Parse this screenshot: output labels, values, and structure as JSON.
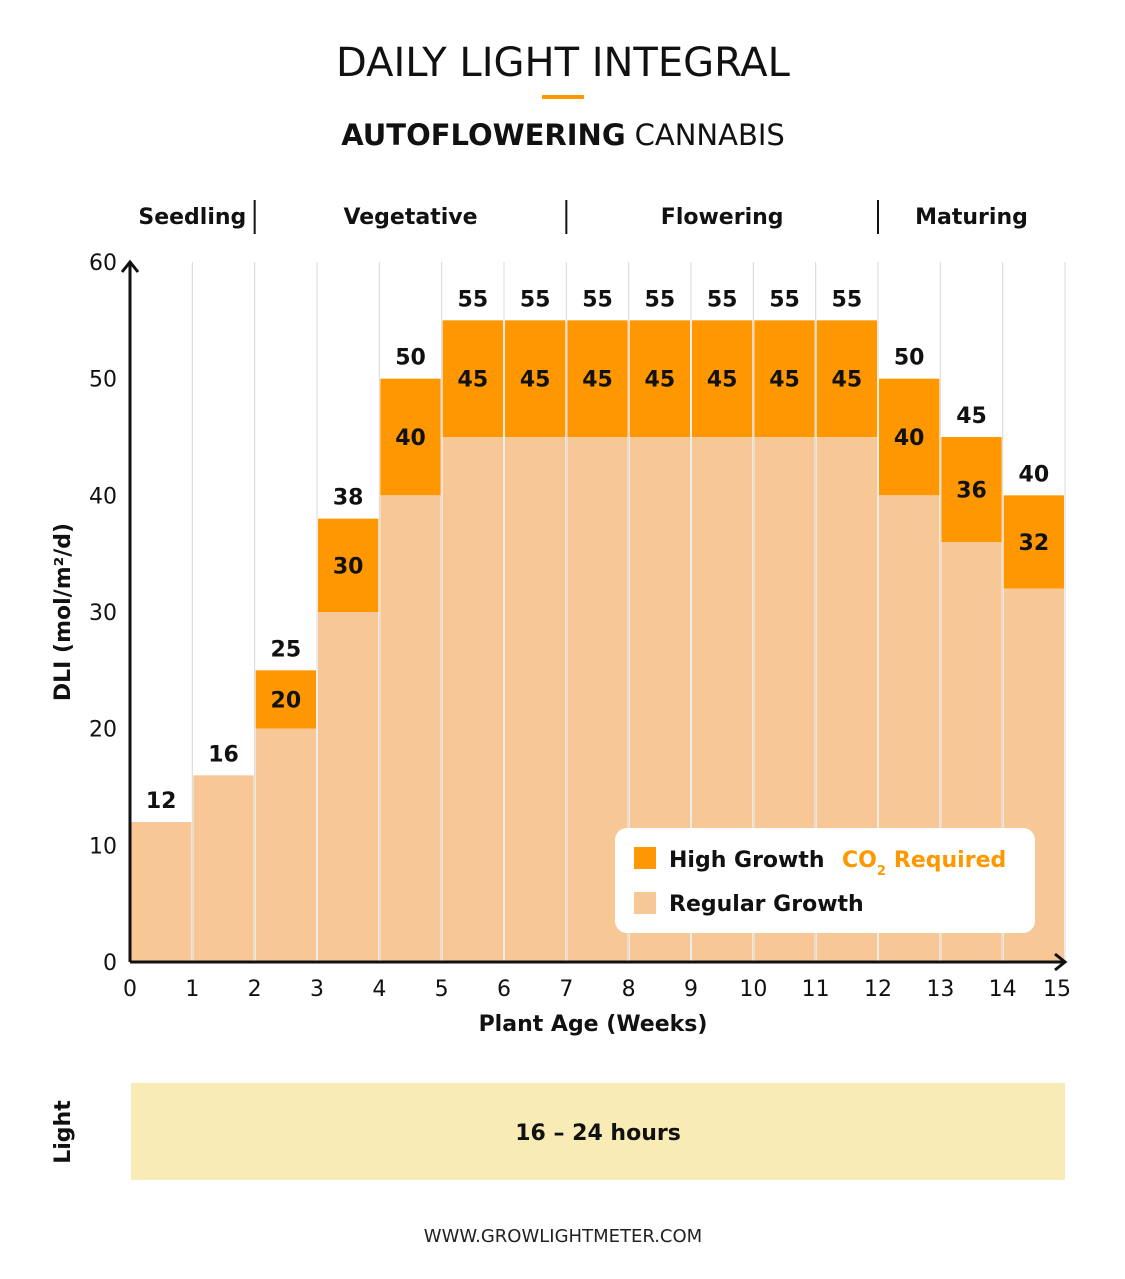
{
  "title": "DAILY LIGHT INTEGRAL",
  "subtitle_bold": "AUTOFLOWERING",
  "subtitle_rest": "CANNABIS",
  "footer": "WWW.GROWLIGHTMETER.COM",
  "colors": {
    "accent": "#ff9800",
    "regular": "#f7c795",
    "light_band": "#f9ebb5",
    "co2": "#ff9800"
  },
  "chart_data": {
    "type": "bar",
    "title": "DAILY LIGHT INTEGRAL",
    "xlabel": "Plant Age (Weeks)",
    "ylabel": "DLI (mol/m²/d)",
    "xlim": [
      0,
      15
    ],
    "ylim": [
      0,
      60
    ],
    "x_ticks": [
      "0",
      "1",
      "2",
      "3",
      "4",
      "5",
      "6",
      "7",
      "8",
      "9",
      "10",
      "11",
      "12",
      "13",
      "14",
      "15"
    ],
    "y_ticks": [
      "0",
      "10",
      "20",
      "30",
      "40",
      "50",
      "60"
    ],
    "weeks": [
      1,
      2,
      3,
      4,
      5,
      6,
      7,
      8,
      9,
      10,
      11,
      12,
      13,
      14,
      15
    ],
    "series": [
      {
        "name": "Regular Growth",
        "values": [
          12,
          16,
          20,
          30,
          40,
          45,
          45,
          45,
          45,
          45,
          45,
          45,
          40,
          36,
          32
        ]
      },
      {
        "name": "High Growth",
        "values": [
          null,
          null,
          25,
          38,
          50,
          55,
          55,
          55,
          55,
          55,
          55,
          55,
          50,
          45,
          40
        ]
      }
    ],
    "phases": [
      {
        "label": "Seedling",
        "start": 0,
        "end": 2
      },
      {
        "label": "Vegetative",
        "start": 2,
        "end": 7
      },
      {
        "label": "Flowering",
        "start": 7,
        "end": 12
      },
      {
        "label": "Maturing",
        "start": 12,
        "end": 15
      }
    ],
    "legend": {
      "position": "bottom-right",
      "high_label": "High Growth",
      "co2_label": "CO",
      "co2_sub": "2",
      "co2_rest": "Required",
      "regular_label": "Regular Growth"
    }
  },
  "light": {
    "label": "Light",
    "value": "16 – 24 hours"
  }
}
